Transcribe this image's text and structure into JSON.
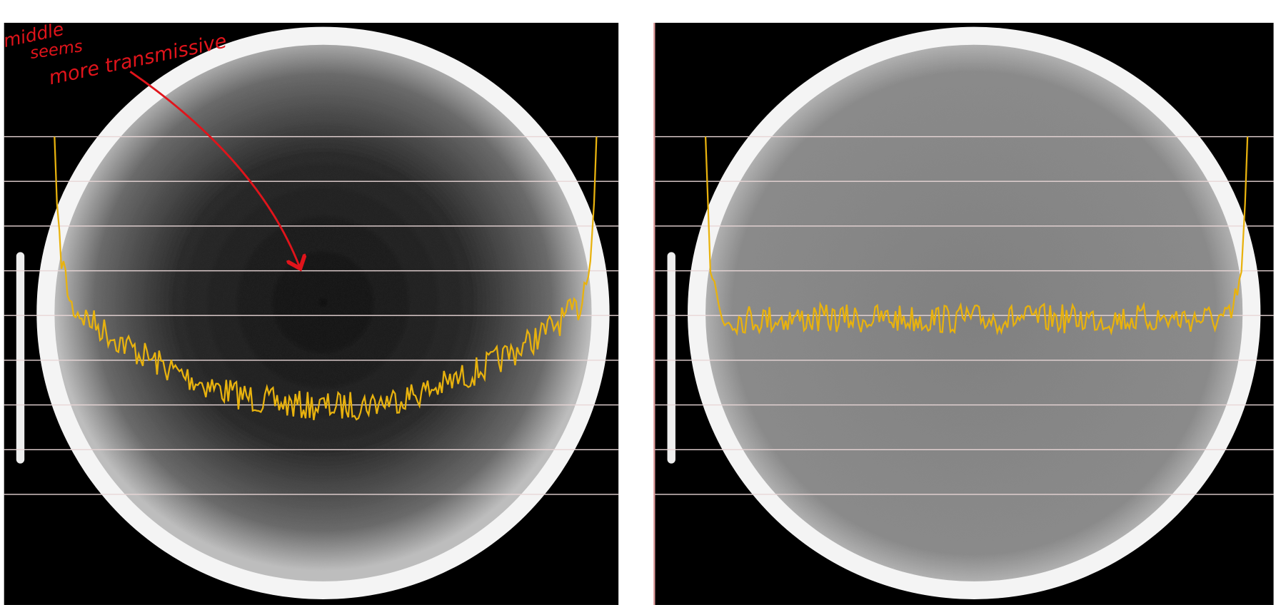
{
  "annotation": {
    "lines": [
      "middle",
      "seems",
      "more transmissive"
    ]
  }
}
